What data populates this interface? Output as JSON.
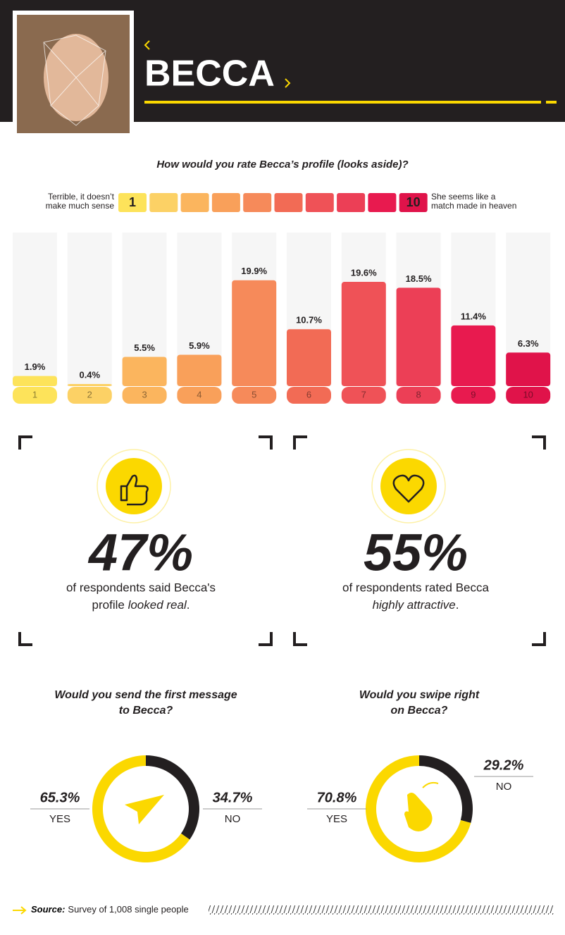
{
  "header": {
    "name": "BECCA"
  },
  "chart_data": [
    {
      "type": "bar",
      "title": "How would you rate Becca’s profile (looks aside)?",
      "scale_low_label": [
        "Terrible, it doesn’t",
        "make much sense"
      ],
      "scale_high_label": [
        "She seems like a",
        "match made in heaven"
      ],
      "categories": [
        "1",
        "2",
        "3",
        "4",
        "5",
        "6",
        "7",
        "8",
        "9",
        "10"
      ],
      "values": [
        1.9,
        0.4,
        5.5,
        5.9,
        19.9,
        10.7,
        19.6,
        18.5,
        11.4,
        6.3
      ],
      "value_labels": [
        "1.9%",
        "0.4%",
        "5.5%",
        "5.9%",
        "19.9%",
        "10.7%",
        "19.6%",
        "18.5%",
        "11.4%",
        "6.3%"
      ],
      "colors": [
        "#fde35a",
        "#fcd165",
        "#fbb55e",
        "#f9a05a",
        "#f68a5a",
        "#f26b55",
        "#ef5257",
        "#ec3f56",
        "#e81a4f",
        "#e0134a"
      ]
    },
    {
      "type": "pie",
      "title": [
        "Would you send the first message",
        "to Becca?"
      ],
      "categories": [
        "YES",
        "NO"
      ],
      "values": [
        65.3,
        34.7
      ],
      "value_labels": [
        "65.3%",
        "34.7%"
      ],
      "colors": [
        "#fbd800",
        "#231f20"
      ]
    },
    {
      "type": "pie",
      "title": [
        "Would you swipe right",
        "on Becca?"
      ],
      "categories": [
        "YES",
        "NO"
      ],
      "values": [
        70.8,
        29.2
      ],
      "value_labels": [
        "70.8%",
        "29.2%"
      ],
      "colors": [
        "#fbd800",
        "#231f20"
      ]
    }
  ],
  "stats": [
    {
      "value": "47%",
      "line1": "of respondents said Becca's",
      "line2": [
        {
          "text": "profile ",
          "italic": false
        },
        {
          "text": "looked real",
          "italic": true
        },
        {
          "text": ".",
          "italic": false
        }
      ]
    },
    {
      "value": "55%",
      "line1": "of respondents rated Becca",
      "line2": [
        {
          "text": "highly attractive",
          "italic": true
        },
        {
          "text": ".",
          "italic": false
        }
      ]
    }
  ],
  "source": {
    "label": "Source:",
    "text": "Survey of 1,008 single people"
  }
}
